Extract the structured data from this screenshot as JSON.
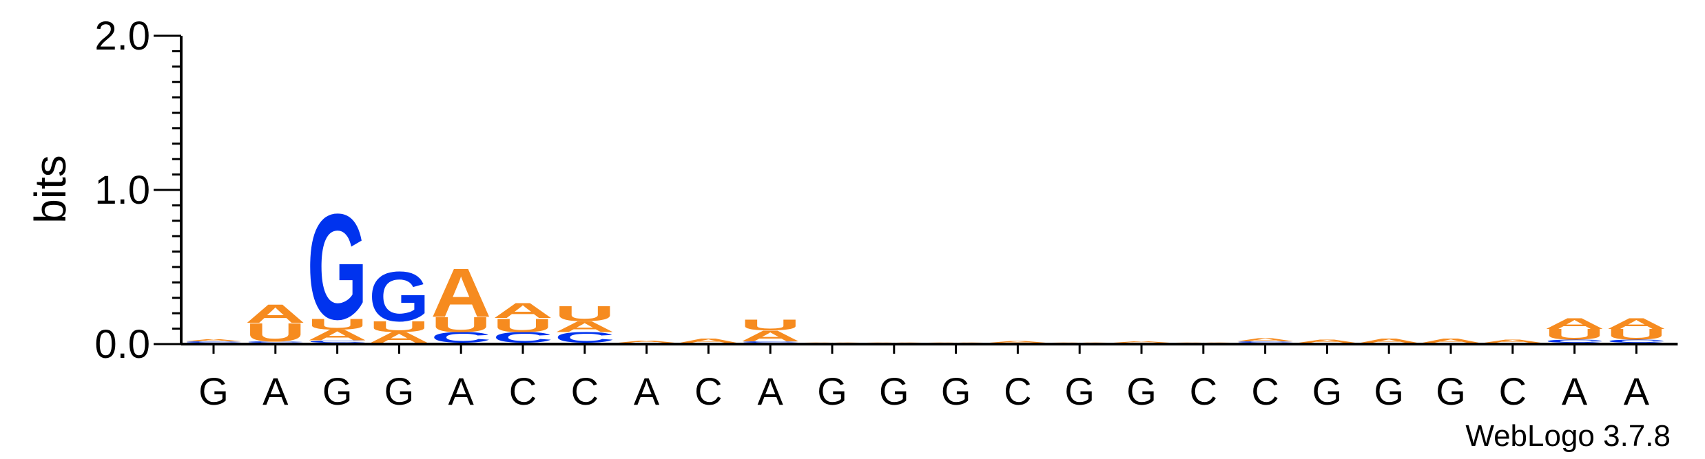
{
  "chart_data": {
    "type": "sequence-logo",
    "ylabel": "bits",
    "ylim": [
      0,
      2
    ],
    "yticks": [
      "0.0",
      "1.0",
      "2.0"
    ],
    "minor_tick_step": 0.1,
    "positions": [
      "G",
      "A",
      "G",
      "G",
      "A",
      "C",
      "C",
      "A",
      "C",
      "A",
      "G",
      "G",
      "G",
      "C",
      "G",
      "G",
      "C",
      "C",
      "G",
      "G",
      "G",
      "C",
      "A",
      "A"
    ],
    "colors": {
      "A": "#f68b1f",
      "U": "#f68b1f",
      "G": "#0033ee",
      "C": "#0033ee"
    },
    "stacks": [
      [
        {
          "l": "C",
          "v": 0.01
        },
        {
          "l": "A",
          "v": 0.015
        }
      ],
      [
        {
          "l": "C",
          "v": 0.01
        },
        {
          "l": "U",
          "v": 0.12
        },
        {
          "l": "A",
          "v": 0.12
        }
      ],
      [
        {
          "l": "C",
          "v": 0.015
        },
        {
          "l": "A",
          "v": 0.07
        },
        {
          "l": "U",
          "v": 0.07
        },
        {
          "l": "G",
          "v": 0.7
        }
      ],
      [
        {
          "l": "A",
          "v": 0.07
        },
        {
          "l": "U",
          "v": 0.07
        },
        {
          "l": "G",
          "v": 0.33
        }
      ],
      [
        {
          "l": "C",
          "v": 0.07
        },
        {
          "l": "U",
          "v": 0.1
        },
        {
          "l": "A",
          "v": 0.32
        }
      ],
      [
        {
          "l": "C",
          "v": 0.07
        },
        {
          "l": "U",
          "v": 0.09
        },
        {
          "l": "A",
          "v": 0.1
        }
      ],
      [
        {
          "l": "C",
          "v": 0.07
        },
        {
          "l": "A",
          "v": 0.07
        },
        {
          "l": "U",
          "v": 0.1
        }
      ],
      [
        {
          "l": "A",
          "v": 0.015
        }
      ],
      [
        {
          "l": "A",
          "v": 0.025
        }
      ],
      [
        {
          "l": "C",
          "v": 0.01
        },
        {
          "l": "A",
          "v": 0.07
        },
        {
          "l": "U",
          "v": 0.07
        }
      ],
      [
        {
          "l": "A",
          "v": 0.003
        }
      ],
      [
        {
          "l": "A",
          "v": 0.003
        }
      ],
      [
        {
          "l": "A",
          "v": 0.003
        }
      ],
      [
        {
          "l": "A",
          "v": 0.012
        }
      ],
      [
        {
          "l": "A",
          "v": 0.003
        }
      ],
      [
        {
          "l": "A",
          "v": 0.01
        }
      ],
      [
        {
          "l": "A",
          "v": 0.003
        }
      ],
      [
        {
          "l": "C",
          "v": 0.01
        },
        {
          "l": "A",
          "v": 0.02
        }
      ],
      [
        {
          "l": "A",
          "v": 0.02
        }
      ],
      [
        {
          "l": "A",
          "v": 0.025
        }
      ],
      [
        {
          "l": "A",
          "v": 0.025
        }
      ],
      [
        {
          "l": "A",
          "v": 0.02
        }
      ],
      [
        {
          "l": "C",
          "v": 0.02
        },
        {
          "l": "U",
          "v": 0.07
        },
        {
          "l": "A",
          "v": 0.07
        }
      ],
      [
        {
          "l": "C",
          "v": 0.02
        },
        {
          "l": "U",
          "v": 0.07
        },
        {
          "l": "A",
          "v": 0.07
        }
      ]
    ],
    "footer": "WebLogo 3.7.8"
  }
}
